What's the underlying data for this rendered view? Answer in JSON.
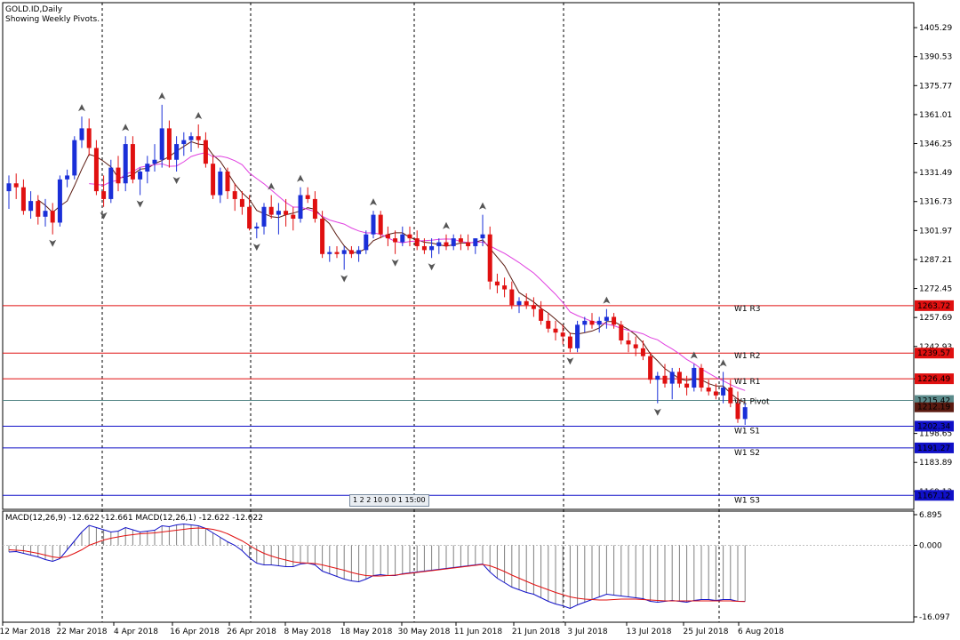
{
  "header": {
    "symbol_line": "GOLD.ID,Daily",
    "indicator_line": "Showing Weekly Pivots."
  },
  "macd_label": "MACD(12,26,9) -12.622 -12.661 MACD(12,26,1) -12.622 -12.622",
  "period_toolbar": "1 2 2 10 0 0 1 15:00",
  "colors": {
    "bull": "#1a2fd8",
    "bear": "#e01010",
    "ma_fast": "#5a1a10",
    "ma_slow": "#e040e0",
    "resistance": "#e01010",
    "support": "#1010c8",
    "pivot": "#5a8a8a",
    "macd_line": "#1010c8",
    "signal_line": "#e01010",
    "hist": "#808080"
  },
  "chart_data": {
    "type": "candlestick",
    "ylim": [
      1160,
      1418
    ],
    "y_ticks": [
      "1405.29",
      "1390.53",
      "1375.77",
      "1361.01",
      "1346.25",
      "1331.49",
      "1316.73",
      "1301.97",
      "1287.21",
      "1272.45",
      "1257.69",
      "1242.93",
      "1226.49",
      "1198.65",
      "1183.89",
      "1169.13"
    ],
    "x_labels": [
      "12 Mar 2018",
      "22 Mar 2018",
      "4 Apr 2018",
      "16 Apr 2018",
      "26 Apr 2018",
      "8 May 2018",
      "18 May 2018",
      "30 May 2018",
      "11 Jun 2018",
      "21 Jun 2018",
      "3 Jul 2018",
      "13 Jul 2018",
      "25 Jul 2018",
      "6 Aug 2018"
    ],
    "pivot_levels": [
      {
        "name": "W1 R3",
        "value": "1263.72",
        "price": 1263.72,
        "kind": "resistance"
      },
      {
        "name": "W1 R2",
        "value": "1239.57",
        "price": 1239.57,
        "kind": "resistance"
      },
      {
        "name": "W1 R1",
        "value": "1226.49",
        "price": 1226.49,
        "kind": "resistance"
      },
      {
        "name": "W1 Pivot",
        "value": "1215.42",
        "price": 1215.42,
        "kind": "pivot"
      },
      {
        "name": "W1 S1",
        "value": "1202.34",
        "price": 1202.34,
        "kind": "support"
      },
      {
        "name": "W1 S2",
        "value": "1191.27",
        "price": 1191.27,
        "kind": "support"
      },
      {
        "name": "W1 S3",
        "value": "1167.12",
        "price": 1167.12,
        "kind": "support"
      }
    ],
    "current_price": "1212.19",
    "candles": [
      {
        "o": 1322,
        "h": 1330,
        "l": 1313,
        "c": 1326
      },
      {
        "o": 1326,
        "h": 1331,
        "l": 1318,
        "c": 1324
      },
      {
        "o": 1324,
        "h": 1328,
        "l": 1310,
        "c": 1312
      },
      {
        "o": 1312,
        "h": 1322,
        "l": 1308,
        "c": 1317
      },
      {
        "o": 1317,
        "h": 1320,
        "l": 1305,
        "c": 1309
      },
      {
        "o": 1309,
        "h": 1318,
        "l": 1304,
        "c": 1312
      },
      {
        "o": 1312,
        "h": 1316,
        "l": 1300,
        "c": 1306
      },
      {
        "o": 1306,
        "h": 1330,
        "l": 1304,
        "c": 1328
      },
      {
        "o": 1328,
        "h": 1333,
        "l": 1324,
        "c": 1330
      },
      {
        "o": 1330,
        "h": 1350,
        "l": 1328,
        "c": 1348
      },
      {
        "o": 1348,
        "h": 1360,
        "l": 1344,
        "c": 1354
      },
      {
        "o": 1354,
        "h": 1359,
        "l": 1340,
        "c": 1344
      },
      {
        "o": 1344,
        "h": 1348,
        "l": 1320,
        "c": 1322
      },
      {
        "o": 1322,
        "h": 1330,
        "l": 1314,
        "c": 1318
      },
      {
        "o": 1318,
        "h": 1338,
        "l": 1316,
        "c": 1334
      },
      {
        "o": 1334,
        "h": 1340,
        "l": 1322,
        "c": 1326
      },
      {
        "o": 1326,
        "h": 1350,
        "l": 1322,
        "c": 1346
      },
      {
        "o": 1346,
        "h": 1350,
        "l": 1326,
        "c": 1328
      },
      {
        "o": 1328,
        "h": 1334,
        "l": 1320,
        "c": 1332
      },
      {
        "o": 1332,
        "h": 1340,
        "l": 1326,
        "c": 1336
      },
      {
        "o": 1336,
        "h": 1346,
        "l": 1332,
        "c": 1338
      },
      {
        "o": 1338,
        "h": 1366,
        "l": 1334,
        "c": 1354
      },
      {
        "o": 1354,
        "h": 1358,
        "l": 1334,
        "c": 1338
      },
      {
        "o": 1338,
        "h": 1350,
        "l": 1332,
        "c": 1346
      },
      {
        "o": 1346,
        "h": 1352,
        "l": 1340,
        "c": 1348
      },
      {
        "o": 1348,
        "h": 1352,
        "l": 1342,
        "c": 1350
      },
      {
        "o": 1350,
        "h": 1356,
        "l": 1344,
        "c": 1348
      },
      {
        "o": 1348,
        "h": 1352,
        "l": 1334,
        "c": 1336
      },
      {
        "o": 1336,
        "h": 1340,
        "l": 1318,
        "c": 1320
      },
      {
        "o": 1320,
        "h": 1334,
        "l": 1316,
        "c": 1332
      },
      {
        "o": 1332,
        "h": 1334,
        "l": 1318,
        "c": 1322
      },
      {
        "o": 1322,
        "h": 1326,
        "l": 1312,
        "c": 1318
      },
      {
        "o": 1318,
        "h": 1322,
        "l": 1310,
        "c": 1314
      },
      {
        "o": 1314,
        "h": 1320,
        "l": 1302,
        "c": 1303
      },
      {
        "o": 1303,
        "h": 1306,
        "l": 1298,
        "c": 1304
      },
      {
        "o": 1304,
        "h": 1316,
        "l": 1300,
        "c": 1314
      },
      {
        "o": 1314,
        "h": 1320,
        "l": 1308,
        "c": 1310
      },
      {
        "o": 1310,
        "h": 1316,
        "l": 1300,
        "c": 1312
      },
      {
        "o": 1312,
        "h": 1318,
        "l": 1304,
        "c": 1310
      },
      {
        "o": 1310,
        "h": 1314,
        "l": 1302,
        "c": 1308
      },
      {
        "o": 1308,
        "h": 1324,
        "l": 1306,
        "c": 1320
      },
      {
        "o": 1320,
        "h": 1324,
        "l": 1316,
        "c": 1318
      },
      {
        "o": 1318,
        "h": 1322,
        "l": 1306,
        "c": 1308
      },
      {
        "o": 1308,
        "h": 1312,
        "l": 1288,
        "c": 1290
      },
      {
        "o": 1290,
        "h": 1294,
        "l": 1286,
        "c": 1291
      },
      {
        "o": 1291,
        "h": 1294,
        "l": 1288,
        "c": 1290
      },
      {
        "o": 1290,
        "h": 1294,
        "l": 1282,
        "c": 1292
      },
      {
        "o": 1292,
        "h": 1294,
        "l": 1288,
        "c": 1290
      },
      {
        "o": 1290,
        "h": 1294,
        "l": 1286,
        "c": 1292
      },
      {
        "o": 1292,
        "h": 1302,
        "l": 1290,
        "c": 1300
      },
      {
        "o": 1300,
        "h": 1312,
        "l": 1298,
        "c": 1310
      },
      {
        "o": 1310,
        "h": 1312,
        "l": 1298,
        "c": 1300
      },
      {
        "o": 1300,
        "h": 1304,
        "l": 1294,
        "c": 1298
      },
      {
        "o": 1298,
        "h": 1302,
        "l": 1290,
        "c": 1296
      },
      {
        "o": 1296,
        "h": 1304,
        "l": 1294,
        "c": 1300
      },
      {
        "o": 1300,
        "h": 1304,
        "l": 1294,
        "c": 1298
      },
      {
        "o": 1298,
        "h": 1302,
        "l": 1292,
        "c": 1294
      },
      {
        "o": 1294,
        "h": 1298,
        "l": 1290,
        "c": 1292
      },
      {
        "o": 1292,
        "h": 1298,
        "l": 1288,
        "c": 1294
      },
      {
        "o": 1294,
        "h": 1298,
        "l": 1290,
        "c": 1296
      },
      {
        "o": 1296,
        "h": 1300,
        "l": 1292,
        "c": 1294
      },
      {
        "o": 1294,
        "h": 1300,
        "l": 1292,
        "c": 1298
      },
      {
        "o": 1298,
        "h": 1300,
        "l": 1292,
        "c": 1296
      },
      {
        "o": 1296,
        "h": 1300,
        "l": 1292,
        "c": 1294
      },
      {
        "o": 1294,
        "h": 1298,
        "l": 1290,
        "c": 1298
      },
      {
        "o": 1298,
        "h": 1310,
        "l": 1294,
        "c": 1300
      },
      {
        "o": 1300,
        "h": 1304,
        "l": 1272,
        "c": 1276
      },
      {
        "o": 1276,
        "h": 1280,
        "l": 1270,
        "c": 1274
      },
      {
        "o": 1274,
        "h": 1278,
        "l": 1268,
        "c": 1272
      },
      {
        "o": 1272,
        "h": 1276,
        "l": 1262,
        "c": 1264
      },
      {
        "o": 1264,
        "h": 1268,
        "l": 1260,
        "c": 1266
      },
      {
        "o": 1266,
        "h": 1270,
        "l": 1262,
        "c": 1264
      },
      {
        "o": 1264,
        "h": 1268,
        "l": 1258,
        "c": 1262
      },
      {
        "o": 1262,
        "h": 1266,
        "l": 1254,
        "c": 1256
      },
      {
        "o": 1256,
        "h": 1260,
        "l": 1250,
        "c": 1252
      },
      {
        "o": 1252,
        "h": 1256,
        "l": 1246,
        "c": 1250
      },
      {
        "o": 1250,
        "h": 1254,
        "l": 1244,
        "c": 1248
      },
      {
        "o": 1248,
        "h": 1250,
        "l": 1240,
        "c": 1242
      },
      {
        "o": 1242,
        "h": 1256,
        "l": 1240,
        "c": 1254
      },
      {
        "o": 1254,
        "h": 1258,
        "l": 1250,
        "c": 1256
      },
      {
        "o": 1256,
        "h": 1260,
        "l": 1252,
        "c": 1254
      },
      {
        "o": 1254,
        "h": 1258,
        "l": 1250,
        "c": 1256
      },
      {
        "o": 1256,
        "h": 1262,
        "l": 1252,
        "c": 1258
      },
      {
        "o": 1258,
        "h": 1260,
        "l": 1252,
        "c": 1254
      },
      {
        "o": 1254,
        "h": 1256,
        "l": 1244,
        "c": 1246
      },
      {
        "o": 1246,
        "h": 1250,
        "l": 1240,
        "c": 1244
      },
      {
        "o": 1244,
        "h": 1248,
        "l": 1238,
        "c": 1242
      },
      {
        "o": 1242,
        "h": 1246,
        "l": 1236,
        "c": 1238
      },
      {
        "o": 1238,
        "h": 1240,
        "l": 1224,
        "c": 1226
      },
      {
        "o": 1226,
        "h": 1230,
        "l": 1214,
        "c": 1228
      },
      {
        "o": 1228,
        "h": 1234,
        "l": 1222,
        "c": 1224
      },
      {
        "o": 1224,
        "h": 1232,
        "l": 1216,
        "c": 1230
      },
      {
        "o": 1230,
        "h": 1232,
        "l": 1222,
        "c": 1224
      },
      {
        "o": 1224,
        "h": 1228,
        "l": 1218,
        "c": 1222
      },
      {
        "o": 1222,
        "h": 1234,
        "l": 1220,
        "c": 1232
      },
      {
        "o": 1232,
        "h": 1234,
        "l": 1220,
        "c": 1222
      },
      {
        "o": 1222,
        "h": 1226,
        "l": 1218,
        "c": 1220
      },
      {
        "o": 1220,
        "h": 1224,
        "l": 1216,
        "c": 1218
      },
      {
        "o": 1218,
        "h": 1230,
        "l": 1214,
        "c": 1222
      },
      {
        "o": 1222,
        "h": 1226,
        "l": 1212,
        "c": 1214
      },
      {
        "o": 1214,
        "h": 1220,
        "l": 1204,
        "c": 1206
      },
      {
        "o": 1206,
        "h": 1214,
        "l": 1203,
        "c": 1212
      }
    ],
    "macd": {
      "ylim": [
        -16.097,
        6.895
      ],
      "y_ticks": [
        "6.895",
        "0.000",
        "-16.097"
      ],
      "hist": [
        -1.5,
        -1.4,
        -1.8,
        -2.2,
        -2.6,
        -3.2,
        -3.6,
        -3.0,
        -1.0,
        1.0,
        3.0,
        4.5,
        4.0,
        3.5,
        3.0,
        3.2,
        4.0,
        3.5,
        3.0,
        3.2,
        3.4,
        4.4,
        4.2,
        4.6,
        4.8,
        4.6,
        4.4,
        3.8,
        2.8,
        1.8,
        0.8,
        0.0,
        -1.2,
        -2.8,
        -4.0,
        -4.4,
        -4.4,
        -4.6,
        -4.8,
        -4.8,
        -4.2,
        -4.0,
        -4.4,
        -5.8,
        -6.4,
        -7.0,
        -7.6,
        -8.0,
        -8.2,
        -7.6,
        -6.8,
        -6.6,
        -6.8,
        -6.8,
        -6.4,
        -6.2,
        -6.0,
        -5.8,
        -5.6,
        -5.4,
        -5.2,
        -5.0,
        -4.8,
        -4.6,
        -4.4,
        -4.2,
        -6.0,
        -7.4,
        -8.4,
        -9.4,
        -10.0,
        -10.6,
        -11.0,
        -11.8,
        -12.6,
        -13.2,
        -13.6,
        -14.2,
        -13.4,
        -12.8,
        -12.2,
        -11.6,
        -11.0,
        -11.2,
        -11.4,
        -11.6,
        -11.8,
        -12.0,
        -12.6,
        -12.8,
        -12.6,
        -12.4,
        -12.6,
        -12.8,
        -12.4,
        -12.2,
        -12.2,
        -12.4,
        -12.2,
        -12.2,
        -12.6,
        -12.6
      ],
      "signal": [
        -1.0,
        -1.1,
        -1.2,
        -1.5,
        -1.8,
        -2.2,
        -2.6,
        -2.8,
        -2.5,
        -1.8,
        -1.0,
        0.0,
        0.6,
        1.2,
        1.6,
        1.9,
        2.2,
        2.4,
        2.6,
        2.7,
        2.8,
        3.0,
        3.2,
        3.4,
        3.6,
        3.8,
        3.9,
        3.8,
        3.6,
        3.2,
        2.6,
        1.8,
        1.0,
        0.0,
        -1.0,
        -1.8,
        -2.4,
        -2.9,
        -3.3,
        -3.7,
        -3.9,
        -4.0,
        -4.1,
        -4.4,
        -4.8,
        -5.2,
        -5.6,
        -6.1,
        -6.5,
        -6.8,
        -6.9,
        -6.9,
        -6.8,
        -6.7,
        -6.5,
        -6.3,
        -6.1,
        -5.9,
        -5.7,
        -5.5,
        -5.3,
        -5.1,
        -4.9,
        -4.7,
        -4.5,
        -4.3,
        -4.6,
        -5.2,
        -5.9,
        -6.7,
        -7.4,
        -8.1,
        -8.8,
        -9.4,
        -10.0,
        -10.6,
        -11.1,
        -11.6,
        -11.9,
        -12.1,
        -12.2,
        -12.3,
        -12.3,
        -12.2,
        -12.1,
        -12.1,
        -12.1,
        -12.2,
        -12.3,
        -12.4,
        -12.5,
        -12.5,
        -12.5,
        -12.5,
        -12.5,
        -12.5,
        -12.5,
        -12.5,
        -12.5,
        -12.5,
        -12.6,
        -12.66
      ]
    }
  }
}
